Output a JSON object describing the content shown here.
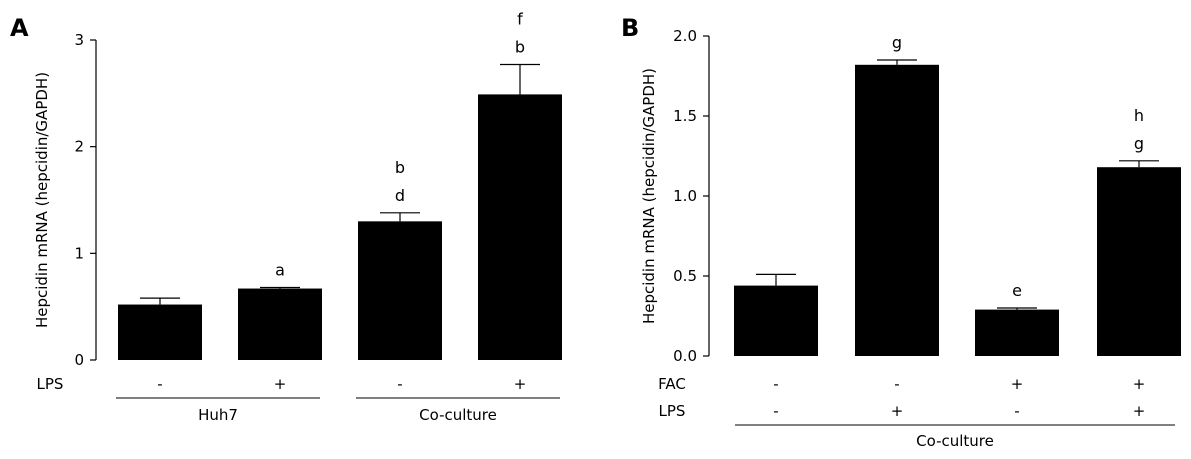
{
  "chart_data": [
    {
      "type": "bar",
      "panel": "A",
      "ylabel": "Hepcidin mRNA (hepcidin/GAPDH)",
      "ylim": [
        0,
        3
      ],
      "yticks": [
        "0",
        "1",
        "2",
        "3"
      ],
      "values": [
        0.52,
        0.67,
        1.3,
        2.49
      ],
      "errors": [
        0.06,
        0.01,
        0.08,
        0.28
      ],
      "annotations": [
        [],
        [
          "a"
        ],
        [
          "b",
          "d"
        ],
        [
          "f",
          "b"
        ]
      ],
      "condition_rows": [
        {
          "label": "LPS",
          "values": [
            "-",
            "+",
            "-",
            "+"
          ]
        }
      ],
      "groups": [
        {
          "label": "Huh7",
          "bars": [
            0,
            1
          ]
        },
        {
          "label": "Co-culture",
          "bars": [
            2,
            3
          ]
        }
      ]
    },
    {
      "type": "bar",
      "panel": "B",
      "ylabel": "Hepcidin mRNA (hepcidin/GAPDH)",
      "ylim": [
        0,
        2.0
      ],
      "yticks": [
        "0.0",
        "0.5",
        "1.0",
        "1.5",
        "2.0"
      ],
      "values": [
        0.44,
        1.82,
        0.29,
        1.18
      ],
      "errors": [
        0.07,
        0.03,
        0.01,
        0.04
      ],
      "annotations": [
        [],
        [
          "g"
        ],
        [
          "e"
        ],
        [
          "h",
          "g"
        ]
      ],
      "condition_rows": [
        {
          "label": "FAC",
          "values": [
            "-",
            "-",
            "+",
            "+"
          ]
        },
        {
          "label": "LPS",
          "values": [
            "-",
            "+",
            "-",
            "+"
          ]
        }
      ],
      "groups": [
        {
          "label": "Co-culture",
          "bars": [
            0,
            1,
            2,
            3
          ]
        }
      ]
    }
  ]
}
